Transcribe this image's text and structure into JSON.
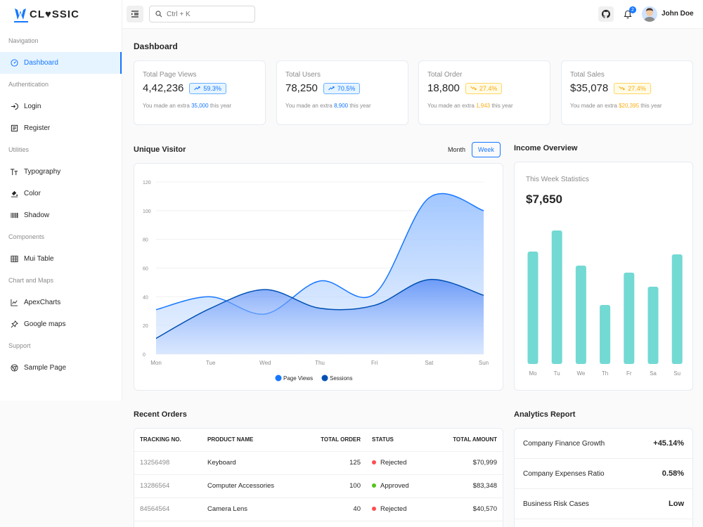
{
  "app": {
    "logo_text": "CL♥SSIC",
    "brand_color": "#1677ff"
  },
  "sidebar": {
    "groups": [
      {
        "label": "Navigation",
        "items": [
          {
            "label": "Dashboard",
            "icon": "dashboard-icon",
            "active": true
          }
        ]
      },
      {
        "label": "Authentication",
        "items": [
          {
            "label": "Login",
            "icon": "login-icon"
          },
          {
            "label": "Register",
            "icon": "register-icon"
          }
        ]
      },
      {
        "label": "Utilities",
        "items": [
          {
            "label": "Typography",
            "icon": "typography-icon"
          },
          {
            "label": "Color",
            "icon": "color-icon"
          },
          {
            "label": "Shadow",
            "icon": "shadow-icon"
          }
        ]
      },
      {
        "label": "Components",
        "items": [
          {
            "label": "Mui Table",
            "icon": "table-icon"
          }
        ]
      },
      {
        "label": "Chart and Maps",
        "items": [
          {
            "label": "ApexCharts",
            "icon": "chart-icon"
          },
          {
            "label": "Google maps",
            "icon": "map-pin-icon"
          }
        ]
      },
      {
        "label": "Support",
        "items": [
          {
            "label": "Sample Page",
            "icon": "chrome-icon"
          }
        ]
      }
    ]
  },
  "header": {
    "search_placeholder": "Ctrl + K",
    "notification_count": "2",
    "username": "John Doe"
  },
  "dashboard": {
    "title": "Dashboard",
    "stats": [
      {
        "label": "Total Page Views",
        "value": "4,42,236",
        "change": "59.3%",
        "trend": "up",
        "color": "blue",
        "extra": "35,000",
        "foot_prefix": "You made an extra",
        "foot_suffix": "this year"
      },
      {
        "label": "Total Users",
        "value": "78,250",
        "change": "70.5%",
        "trend": "up",
        "color": "blue",
        "extra": "8,900",
        "foot_prefix": "You made an extra",
        "foot_suffix": "this year"
      },
      {
        "label": "Total Order",
        "value": "18,800",
        "change": "27.4%",
        "trend": "down",
        "color": "yellow",
        "extra": "1,943",
        "foot_prefix": "You made an extra",
        "foot_suffix": "this year"
      },
      {
        "label": "Total Sales",
        "value": "$35,078",
        "change": "27.4%",
        "trend": "down",
        "color": "yellow",
        "extra": "$20,395",
        "foot_prefix": "You made an extra",
        "foot_suffix": "this year"
      }
    ]
  },
  "visitor": {
    "title": "Unique Visitor",
    "toggle_month": "Month",
    "toggle_week": "Week",
    "active_toggle": "Week"
  },
  "income": {
    "title": "Income Overview",
    "subtitle": "This Week Statistics",
    "value": "$7,650"
  },
  "chart_data": [
    {
      "type": "area",
      "categories": [
        "Mon",
        "Tue",
        "Wed",
        "Thu",
        "Fri",
        "Sat",
        "Sun"
      ],
      "series": [
        {
          "name": "Page Views",
          "values": [
            31,
            40,
            28,
            51,
            42,
            109,
            100
          ],
          "color": "#1677ff"
        },
        {
          "name": "Sessions",
          "values": [
            11,
            32,
            45,
            32,
            34,
            52,
            41
          ],
          "color": "#0050b3"
        }
      ],
      "yticks": [
        0,
        20,
        40,
        60,
        80,
        100,
        120
      ],
      "ylim": [
        0,
        120
      ],
      "grid": true,
      "legend": "bottom"
    },
    {
      "type": "bar",
      "categories": [
        "Mo",
        "Tu",
        "We",
        "Th",
        "Fr",
        "Sa",
        "Su"
      ],
      "values": [
        80,
        95,
        70,
        42,
        65,
        55,
        78
      ],
      "color": "#73d9d3",
      "ylim": [
        0,
        100
      ]
    }
  ],
  "orders": {
    "title": "Recent Orders",
    "columns": [
      "TRACKING NO.",
      "PRODUCT NAME",
      "TOTAL ORDER",
      "STATUS",
      "TOTAL AMOUNT"
    ],
    "rows": [
      {
        "tracking": "13256498",
        "product": "Keyboard",
        "total": "125",
        "status": "Rejected",
        "status_color": "#ff4d4f",
        "amount": "$70,999"
      },
      {
        "tracking": "13286564",
        "product": "Computer Accessories",
        "total": "100",
        "status": "Approved",
        "status_color": "#52c41a",
        "amount": "$83,348"
      },
      {
        "tracking": "84564564",
        "product": "Camera Lens",
        "total": "40",
        "status": "Rejected",
        "status_color": "#ff4d4f",
        "amount": "$40,570"
      }
    ]
  },
  "analytics": {
    "title": "Analytics Report",
    "rows": [
      {
        "label": "Company Finance Growth",
        "value": "+45.14%"
      },
      {
        "label": "Company Expenses Ratio",
        "value": "0.58%"
      },
      {
        "label": "Business Risk Cases",
        "value": "Low"
      }
    ]
  }
}
